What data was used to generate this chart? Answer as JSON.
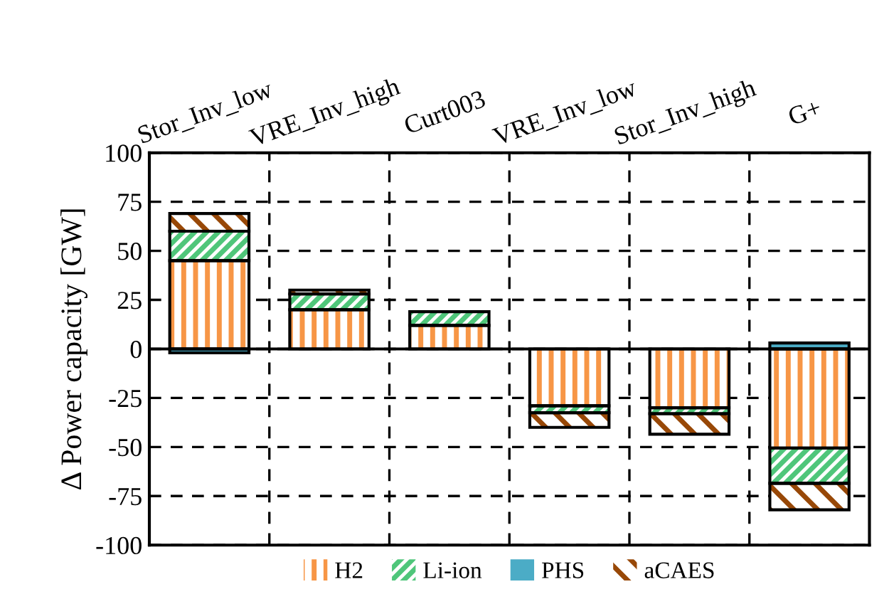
{
  "chart_data": {
    "type": "bar",
    "stacked": true,
    "ylabel": "Δ Power capacity [GW]",
    "categories": [
      "Stor_Inv_low",
      "VRE_Inv_high",
      "Curt003",
      "VRE_Inv_low",
      "Stor_Inv_high",
      "G+"
    ],
    "series": [
      {
        "name": "H2",
        "color": "#f79646",
        "values": [
          45,
          20,
          12,
          -29,
          -30,
          -50.5
        ]
      },
      {
        "name": "Li-ion",
        "color": "#4fc67a",
        "values": [
          15,
          8,
          7,
          -3.5,
          -3,
          -18
        ]
      },
      {
        "name": "PHS",
        "color": "#4bacc6",
        "values": [
          -2,
          null,
          0,
          0,
          0,
          3
        ]
      },
      {
        "name": "aCAES",
        "color": "#984807",
        "values": [
          9,
          2,
          0,
          -7.5,
          -10.5,
          -13.5
        ]
      }
    ],
    "ylim": [
      -100,
      100
    ],
    "yticks": [
      -100,
      -75,
      -50,
      -25,
      0,
      25,
      50,
      75,
      100
    ],
    "grid": true,
    "legend": "bottom"
  }
}
